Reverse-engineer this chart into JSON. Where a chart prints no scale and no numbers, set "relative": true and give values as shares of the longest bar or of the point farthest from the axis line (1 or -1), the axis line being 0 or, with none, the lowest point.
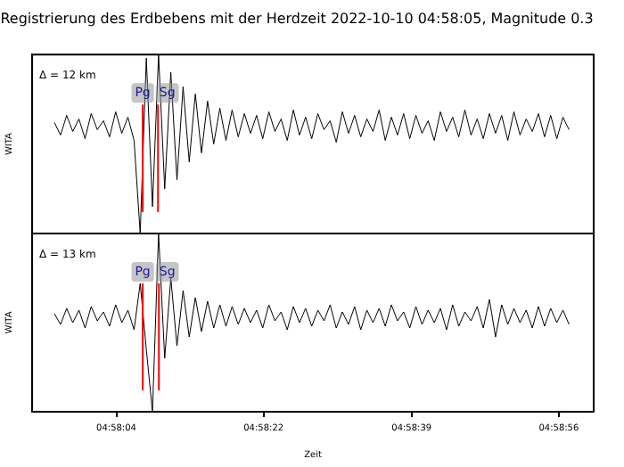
{
  "chart_data": [
    {
      "type": "line",
      "title": "Registrierung des Erdbebens mit der Herdzeit 2022-10-10 04:58:05, Magnitude 0.3",
      "ylabel": "WITA",
      "relative": true,
      "tick_labels": false,
      "legend": false,
      "annotations": [
        "Δ = 12 km"
      ],
      "xlim": [
        4.965111,
        4.983444
      ],
      "xticks": [
        {
          "value": 4.967861,
          "label": null
        },
        {
          "value": 4.972667,
          "label": null
        },
        {
          "value": 4.9775,
          "label": null
        },
        {
          "value": 4.982306,
          "label": null
        }
      ],
      "ref_lines": [
        {
          "axis": "x",
          "value": 4.968722,
          "label": "Pg",
          "color": "#ff0000"
        },
        {
          "axis": "x",
          "value": 4.969222,
          "label": "Sg",
          "color": "#ff0000"
        }
      ],
      "x": [
        4.96584,
        4.96604,
        4.96624,
        4.96644,
        4.96664,
        4.96684,
        4.96704,
        4.96724,
        4.96744,
        4.96764,
        4.96784,
        4.96804,
        4.96824,
        4.96844,
        4.96864,
        4.96884,
        4.96904,
        4.96924,
        4.96944,
        4.96964,
        4.96984,
        4.97004,
        4.97024,
        4.97044,
        4.97064,
        4.97084,
        4.97104,
        4.97124,
        4.97144,
        4.97164,
        4.97184,
        4.97204,
        4.97224,
        4.97244,
        4.97264,
        4.97284,
        4.97304,
        4.97324,
        4.97344,
        4.97364,
        4.97384,
        4.97404,
        4.97424,
        4.97444,
        4.97464,
        4.97484,
        4.97504,
        4.97524,
        4.97544,
        4.97564,
        4.97584,
        4.97604,
        4.97624,
        4.97644,
        4.97664,
        4.97684,
        4.97704,
        4.97724,
        4.97744,
        4.97764,
        4.97784,
        4.97804,
        4.97824,
        4.97844,
        4.97864,
        4.97884,
        4.97904,
        4.97924,
        4.97944,
        4.97964,
        4.97984,
        4.98004,
        4.98024,
        4.98044,
        4.98064,
        4.98084,
        4.98104,
        4.98124,
        4.98144,
        4.98164,
        4.98184,
        4.98204,
        4.98224,
        4.98244,
        4.98264
      ],
      "series": [
        {
          "color": "#000000",
          "values": [
            0.62,
            0.55,
            0.66,
            0.57,
            0.64,
            0.53,
            0.67,
            0.58,
            0.63,
            0.54,
            0.68,
            0.56,
            0.65,
            0.52,
            0.0,
            0.98,
            0.15,
            1.0,
            0.25,
            0.9,
            0.3,
            0.82,
            0.4,
            0.78,
            0.45,
            0.74,
            0.5,
            0.7,
            0.52,
            0.69,
            0.54,
            0.67,
            0.56,
            0.66,
            0.53,
            0.68,
            0.57,
            0.64,
            0.52,
            0.69,
            0.55,
            0.65,
            0.53,
            0.67,
            0.58,
            0.63,
            0.51,
            0.68,
            0.56,
            0.66,
            0.54,
            0.64,
            0.57,
            0.69,
            0.52,
            0.65,
            0.55,
            0.67,
            0.53,
            0.66,
            0.56,
            0.63,
            0.52,
            0.68,
            0.57,
            0.65,
            0.54,
            0.69,
            0.55,
            0.64,
            0.53,
            0.67,
            0.56,
            0.66,
            0.52,
            0.68,
            0.55,
            0.64,
            0.57,
            0.67,
            0.54,
            0.66,
            0.53,
            0.65,
            0.58
          ]
        }
      ]
    },
    {
      "type": "line",
      "ylabel": "WITA",
      "xlabel": "Zeit",
      "relative": true,
      "tick_labels": "x",
      "legend": false,
      "annotations": [
        "Δ = 13 km"
      ],
      "xlim": [
        4.965111,
        4.983444
      ],
      "xticks": [
        {
          "value": 4.967861,
          "label": "04:58:04"
        },
        {
          "value": 4.972667,
          "label": "04:58:22"
        },
        {
          "value": 4.9775,
          "label": "04:58:39"
        },
        {
          "value": 4.982306,
          "label": "04:58:56"
        }
      ],
      "ref_lines": [
        {
          "axis": "x",
          "value": 4.968722,
          "label": "Pg",
          "color": "#ff0000"
        },
        {
          "axis": "x",
          "value": 4.96925,
          "label": "Sg",
          "color": "#ff0000"
        }
      ],
      "x": [
        4.96584,
        4.96604,
        4.96624,
        4.96644,
        4.96664,
        4.96684,
        4.96704,
        4.96724,
        4.96744,
        4.96764,
        4.96784,
        4.96804,
        4.96824,
        4.96844,
        4.96864,
        4.96884,
        4.96904,
        4.96924,
        4.96944,
        4.96964,
        4.96984,
        4.97004,
        4.97024,
        4.97044,
        4.97064,
        4.97084,
        4.97104,
        4.97124,
        4.97144,
        4.97164,
        4.97184,
        4.97204,
        4.97224,
        4.97244,
        4.97264,
        4.97284,
        4.97304,
        4.97324,
        4.97344,
        4.97364,
        4.97384,
        4.97404,
        4.97424,
        4.97444,
        4.97464,
        4.97484,
        4.97504,
        4.97524,
        4.97544,
        4.97564,
        4.97584,
        4.97604,
        4.97624,
        4.97644,
        4.97664,
        4.97684,
        4.97704,
        4.97724,
        4.97744,
        4.97764,
        4.97784,
        4.97804,
        4.97824,
        4.97844,
        4.97864,
        4.97884,
        4.97904,
        4.97924,
        4.97944,
        4.97964,
        4.97984,
        4.98004,
        4.98024,
        4.98044,
        4.98064,
        4.98084,
        4.98104,
        4.98124,
        4.98144,
        4.98164,
        4.98184,
        4.98204,
        4.98224,
        4.98244,
        4.98264
      ],
      "series": [
        {
          "color": "#000000",
          "values": [
            0.55,
            0.49,
            0.58,
            0.5,
            0.57,
            0.47,
            0.59,
            0.51,
            0.56,
            0.48,
            0.6,
            0.5,
            0.57,
            0.46,
            0.72,
            0.35,
            0.0,
            1.0,
            0.3,
            0.75,
            0.37,
            0.68,
            0.42,
            0.64,
            0.45,
            0.62,
            0.47,
            0.6,
            0.48,
            0.59,
            0.49,
            0.58,
            0.5,
            0.57,
            0.47,
            0.6,
            0.51,
            0.56,
            0.46,
            0.59,
            0.5,
            0.58,
            0.48,
            0.57,
            0.51,
            0.6,
            0.47,
            0.56,
            0.49,
            0.59,
            0.46,
            0.57,
            0.5,
            0.58,
            0.48,
            0.6,
            0.51,
            0.56,
            0.47,
            0.59,
            0.49,
            0.57,
            0.5,
            0.58,
            0.46,
            0.6,
            0.48,
            0.56,
            0.51,
            0.59,
            0.47,
            0.63,
            0.42,
            0.6,
            0.49,
            0.58,
            0.5,
            0.57,
            0.47,
            0.59,
            0.48,
            0.58,
            0.5,
            0.57,
            0.49
          ]
        }
      ]
    }
  ]
}
